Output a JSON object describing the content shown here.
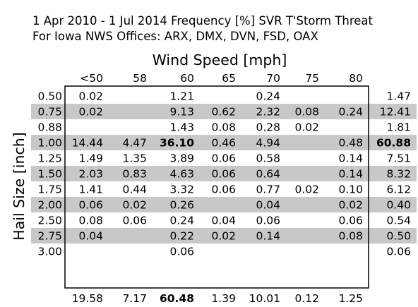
{
  "chart_data": {
    "type": "table",
    "title_line1": "1 Apr 2010 - 1 Jul 2014 Frequency [%] SVR T'Storm Threat",
    "title_line2": "For Iowa NWS Offices: ARX, DMX, DVN, FSD, OAX",
    "xlabel": "Wind Speed [mph]",
    "ylabel": "Hail Size [inch]",
    "columns": [
      "<50",
      "58",
      "60",
      "65",
      "70",
      "75",
      "80"
    ],
    "rows": [
      "0.50",
      "0.75",
      "0.88",
      "1.00",
      "1.25",
      "1.50",
      "1.75",
      "2.00",
      "2.50",
      "2.75",
      "3.00"
    ],
    "cells": [
      [
        "0.02",
        "",
        "1.21",
        "",
        "0.24",
        "",
        ""
      ],
      [
        "0.02",
        "",
        "9.13",
        "0.62",
        "2.32",
        "0.08",
        "0.24"
      ],
      [
        "",
        "",
        "1.43",
        "0.08",
        "0.28",
        "0.02",
        ""
      ],
      [
        "14.44",
        "4.47",
        "36.10",
        "0.46",
        "4.94",
        "",
        "0.48"
      ],
      [
        "1.49",
        "1.35",
        "3.89",
        "0.06",
        "0.58",
        "",
        "0.14"
      ],
      [
        "2.03",
        "0.83",
        "4.63",
        "0.06",
        "0.64",
        "",
        "0.14"
      ],
      [
        "1.41",
        "0.44",
        "3.32",
        "0.06",
        "0.77",
        "0.02",
        "0.10"
      ],
      [
        "0.06",
        "0.02",
        "0.26",
        "",
        "0.04",
        "",
        "0.02"
      ],
      [
        "0.08",
        "0.06",
        "0.24",
        "0.04",
        "0.06",
        "",
        "0.06"
      ],
      [
        "0.04",
        "",
        "0.22",
        "0.02",
        "0.14",
        "",
        "0.08"
      ],
      [
        "",
        "",
        "0.06",
        "",
        "",
        "",
        ""
      ]
    ],
    "row_totals": [
      "1.47",
      "12.41",
      "1.81",
      "60.88",
      "7.51",
      "8.32",
      "6.12",
      "0.40",
      "0.54",
      "0.50",
      "0.06"
    ],
    "col_totals": [
      "19.58",
      "7.17",
      "60.48",
      "1.39",
      "10.01",
      "0.12",
      "1.25"
    ],
    "max_cell": [
      3,
      2
    ],
    "max_row_total_index": 3,
    "max_col_total_index": 2,
    "shaded_color": "#c8c8c8"
  }
}
